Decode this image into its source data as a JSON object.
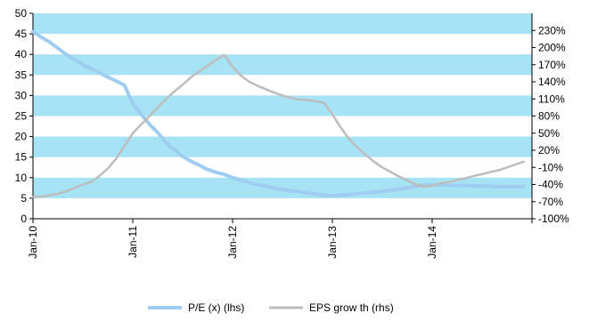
{
  "chart_data": {
    "type": "line",
    "x_ticks": [
      "Jan-10",
      "Jan-11",
      "Jan-12",
      "Jan-13",
      "Jan-14"
    ],
    "y_left": {
      "ylim": [
        0,
        50
      ],
      "ticks": [
        "0",
        "5",
        "10",
        "15",
        "20",
        "25",
        "30",
        "35",
        "40",
        "45",
        "50"
      ]
    },
    "y_right": {
      "ylim": [
        -100,
        260
      ],
      "ticks": [
        "-100%",
        "-70%",
        "-40%",
        "-10%",
        "20%",
        "50%",
        "80%",
        "110%",
        "140%",
        "170%",
        "200%",
        "230%"
      ]
    },
    "x_range": [
      "2010-01",
      "2015-01"
    ],
    "band_color": "#a6e3f5",
    "bands": [
      [
        5,
        10
      ],
      [
        15,
        20
      ],
      [
        25,
        30
      ],
      [
        35,
        40
      ],
      [
        45,
        50
      ]
    ],
    "series": [
      {
        "name": "P/E (x) (lhs)",
        "axis": "left",
        "color": "#9fcdf2",
        "x": [
          "2010-01",
          "2010-02",
          "2010-03",
          "2010-04",
          "2010-05",
          "2010-06",
          "2010-07",
          "2010-08",
          "2010-09",
          "2010-10",
          "2010-11",
          "2010-12",
          "2011-01",
          "2011-02",
          "2011-03",
          "2011-04",
          "2011-05",
          "2011-06",
          "2011-07",
          "2011-08",
          "2011-09",
          "2011-10",
          "2011-11",
          "2011-12",
          "2012-01",
          "2012-02",
          "2012-03",
          "2012-04",
          "2012-05",
          "2012-06",
          "2012-07",
          "2012-08",
          "2012-09",
          "2012-10",
          "2012-11",
          "2012-12",
          "2013-01",
          "2013-02",
          "2013-03",
          "2013-04",
          "2013-05",
          "2013-06",
          "2013-07",
          "2013-08",
          "2013-09",
          "2013-10",
          "2013-11",
          "2013-12",
          "2014-01",
          "2014-02",
          "2014-03",
          "2014-04",
          "2014-05",
          "2014-06",
          "2014-07",
          "2014-08",
          "2014-09",
          "2014-10",
          "2014-11",
          "2014-12"
        ],
        "values": [
          45.5,
          44.2,
          43.0,
          41.5,
          40.0,
          38.8,
          37.5,
          36.5,
          35.5,
          34.5,
          33.5,
          32.5,
          28.0,
          25.5,
          23.0,
          21.0,
          18.5,
          16.8,
          15.2,
          14.0,
          13.0,
          12.0,
          11.3,
          10.8,
          10.0,
          9.4,
          8.8,
          8.3,
          7.9,
          7.4,
          7.1,
          6.8,
          6.6,
          6.3,
          6.0,
          5.7,
          5.6,
          5.8,
          5.9,
          6.1,
          6.3,
          6.5,
          6.7,
          6.9,
          7.2,
          7.5,
          7.9,
          8.2,
          8.3,
          8.2,
          8.1,
          8.1,
          8.1,
          8.0,
          8.0,
          7.9,
          7.8,
          7.8,
          7.8,
          7.8
        ]
      },
      {
        "name": "EPS grow th (rhs)",
        "axis": "right",
        "color": "#bdbdbd",
        "x": [
          "2010-01",
          "2010-02",
          "2010-03",
          "2010-04",
          "2010-05",
          "2010-06",
          "2010-07",
          "2010-08",
          "2010-09",
          "2010-10",
          "2010-11",
          "2010-12",
          "2011-01",
          "2011-02",
          "2011-03",
          "2011-04",
          "2011-05",
          "2011-06",
          "2011-07",
          "2011-08",
          "2011-09",
          "2011-10",
          "2011-11",
          "2011-12",
          "2012-01",
          "2012-02",
          "2012-03",
          "2012-04",
          "2012-05",
          "2012-06",
          "2012-07",
          "2012-08",
          "2012-09",
          "2012-10",
          "2012-11",
          "2012-12",
          "2013-01",
          "2013-02",
          "2013-03",
          "2013-04",
          "2013-05",
          "2013-06",
          "2013-07",
          "2013-08",
          "2013-09",
          "2013-10",
          "2013-11",
          "2013-12",
          "2014-01",
          "2014-02",
          "2014-03",
          "2014-04",
          "2014-05",
          "2014-06",
          "2014-07",
          "2014-08",
          "2014-09",
          "2014-10",
          "2014-11",
          "2014-12"
        ],
        "values": [
          -62,
          -61,
          -59,
          -56,
          -52,
          -46,
          -40,
          -35,
          -25,
          -12,
          5,
          28,
          50,
          65,
          80,
          95,
          110,
          123,
          135,
          148,
          158,
          168,
          178,
          187,
          166,
          151,
          140,
          133,
          127,
          121,
          116,
          112,
          109,
          108,
          106,
          103,
          83,
          60,
          40,
          25,
          12,
          0,
          -10,
          -18,
          -26,
          -33,
          -40,
          -44,
          -42,
          -38,
          -36,
          -32,
          -29,
          -25,
          -22,
          -18,
          -15,
          -10,
          -5,
          0
        ]
      }
    ]
  },
  "legend": {
    "items": [
      {
        "label": "P/E (x) (lhs)",
        "color": "#9fcdf2"
      },
      {
        "label": "EPS grow th (rhs)",
        "color": "#bdbdbd"
      }
    ]
  }
}
